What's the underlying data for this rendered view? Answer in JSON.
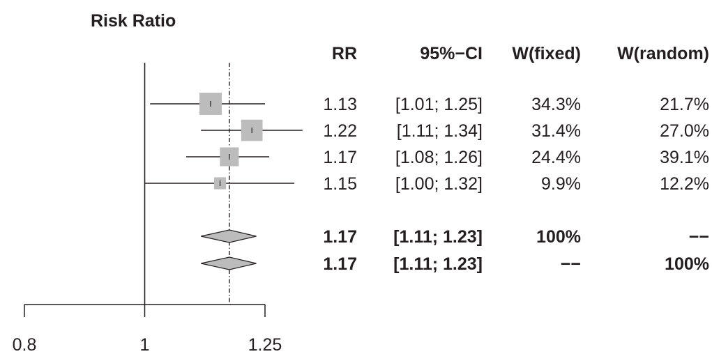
{
  "chart_data": {
    "type": "forest",
    "title": "Risk Ratio",
    "x_scale": "log",
    "xlim": [
      0.8,
      1.25
    ],
    "x_ticks": [
      "0.8",
      "1",
      "1.25"
    ],
    "null_line": 1,
    "pooled_line": 1.17,
    "columns": [
      "RR",
      "95%−CI",
      "W(fixed)",
      "W(random)"
    ],
    "studies": [
      {
        "rr": 1.13,
        "lower": 1.01,
        "upper": 1.25,
        "rr_text": "1.13",
        "ci_text": "[1.01; 1.25]",
        "w_fixed": "34.3%",
        "w_random": "21.7%",
        "weight": 34.3
      },
      {
        "rr": 1.22,
        "lower": 1.11,
        "upper": 1.34,
        "rr_text": "1.22",
        "ci_text": "[1.11; 1.34]",
        "w_fixed": "31.4%",
        "w_random": "27.0%",
        "weight": 31.4
      },
      {
        "rr": 1.17,
        "lower": 1.08,
        "upper": 1.26,
        "rr_text": "1.17",
        "ci_text": "[1.08; 1.26]",
        "w_fixed": "24.4%",
        "w_random": "39.1%",
        "weight": 24.4
      },
      {
        "rr": 1.15,
        "lower": 1.0,
        "upper": 1.32,
        "rr_text": "1.15",
        "ci_text": "[1.00; 1.32]",
        "w_fixed": "9.9%",
        "w_random": "12.2%",
        "weight": 9.9
      }
    ],
    "summaries": [
      {
        "rr": 1.17,
        "lower": 1.11,
        "upper": 1.23,
        "rr_text": "1.17",
        "ci_text": "[1.11; 1.23]",
        "w_fixed": "100%",
        "w_random": "−−"
      },
      {
        "rr": 1.17,
        "lower": 1.11,
        "upper": 1.23,
        "rr_text": "1.17",
        "ci_text": "[1.11; 1.23]",
        "w_fixed": "−−",
        "w_random": "100%"
      }
    ],
    "colors": {
      "box": "#bcbcbc",
      "diamond": "#bcbcbc",
      "line": "#231f20"
    }
  }
}
